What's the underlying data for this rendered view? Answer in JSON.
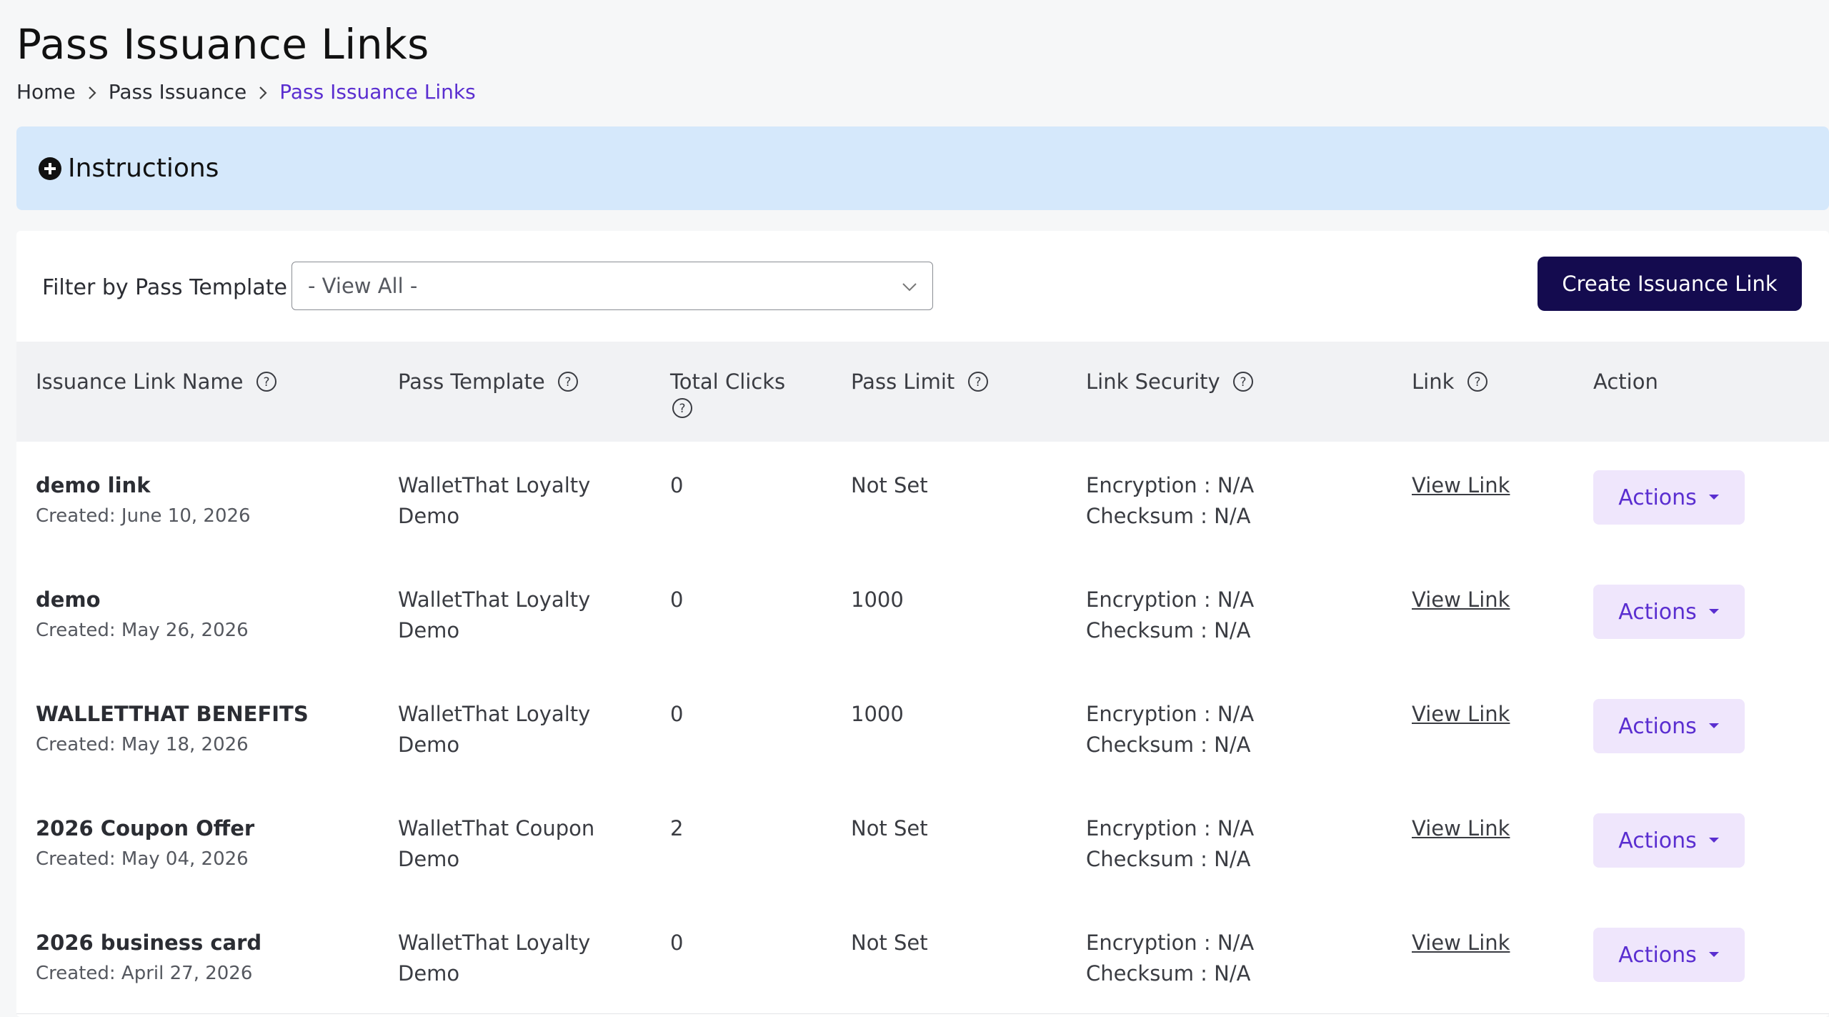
{
  "page": {
    "title": "Pass Issuance Links"
  },
  "breadcrumb": [
    {
      "label": "Home"
    },
    {
      "label": "Pass Issuance"
    },
    {
      "label": "Pass Issuance Links"
    }
  ],
  "instructions": {
    "label": "Instructions",
    "icon": "plus-circle-icon"
  },
  "filter": {
    "label": "Filter by Pass Template",
    "selected": "- View All -"
  },
  "create_button": {
    "label": "Create Issuance Link"
  },
  "table": {
    "columns": [
      {
        "label": "Issuance Link Name",
        "help": true
      },
      {
        "label": "Pass Template",
        "help": true
      },
      {
        "label": "Total Clicks",
        "help": true
      },
      {
        "label": "Pass Limit",
        "help": true
      },
      {
        "label": "Link Security",
        "help": true
      },
      {
        "label": "Link",
        "help": true
      },
      {
        "label": "Action",
        "help": false
      }
    ],
    "rows": [
      {
        "name": "demo link",
        "created": "Created: June 10, 2026",
        "template_line1": "WalletThat Loyalty",
        "template_line2": "Demo",
        "clicks": "0",
        "limit": "Not Set",
        "encryption": "Encryption : N/A",
        "checksum": "Checksum : N/A",
        "link": "View Link",
        "action": "Actions"
      },
      {
        "name": "demo",
        "created": "Created: May 26, 2026",
        "template_line1": "WalletThat Loyalty",
        "template_line2": "Demo",
        "clicks": "0",
        "limit": "1000",
        "encryption": "Encryption : N/A",
        "checksum": "Checksum : N/A",
        "link": "View Link",
        "action": "Actions"
      },
      {
        "name": "WALLETTHAT BENEFITS",
        "created": "Created: May 18, 2026",
        "template_line1": "WalletThat Loyalty",
        "template_line2": "Demo",
        "clicks": "0",
        "limit": "1000",
        "encryption": "Encryption : N/A",
        "checksum": "Checksum : N/A",
        "link": "View Link",
        "action": "Actions"
      },
      {
        "name": "2026 Coupon Offer",
        "created": "Created: May 04, 2026",
        "template_line1": "WalletThat Coupon",
        "template_line2": "Demo",
        "clicks": "2",
        "limit": "Not Set",
        "encryption": "Encryption : N/A",
        "checksum": "Checksum : N/A",
        "link": "View Link",
        "action": "Actions"
      },
      {
        "name": "2026 business card",
        "created": "Created: April 27, 2026",
        "template_line1": "WalletThat Loyalty",
        "template_line2": "Demo",
        "clicks": "0",
        "limit": "Not Set",
        "encryption": "Encryption : N/A",
        "checksum": "Checksum : N/A",
        "link": "View Link",
        "action": "Actions"
      }
    ]
  },
  "colors": {
    "accent": "#5a2ed0",
    "primary_button": "#140b4f",
    "instructions_bg": "#d5e8fb",
    "actions_bg": "#efe6fc"
  }
}
